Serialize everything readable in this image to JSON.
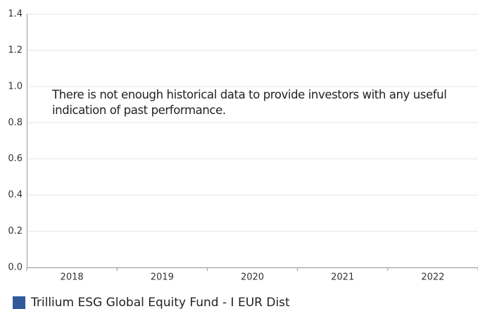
{
  "chart_data": {
    "type": "bar",
    "annotation": "There is not enough historical data to provide investors with any useful indication of past performance.",
    "categories": [
      "2018",
      "2019",
      "2020",
      "2021",
      "2022"
    ],
    "series": [
      {
        "name": "Trillium ESG Global Equity Fund - I EUR Dist",
        "color": "#2f5b9b",
        "values": [
          null,
          null,
          null,
          null,
          null
        ]
      }
    ],
    "ylim": [
      0,
      1.4
    ],
    "yticks": [
      {
        "value": 0,
        "label": "0.0"
      },
      {
        "value": 0.2,
        "label": "0.2"
      },
      {
        "value": 0.4,
        "label": "0.4"
      },
      {
        "value": 0.6,
        "label": "0.6"
      },
      {
        "value": 0.8,
        "label": "0.8"
      },
      {
        "value": 1,
        "label": "1.0"
      },
      {
        "value": 1.2,
        "label": "1.2"
      },
      {
        "value": 1.4,
        "label": "1.4"
      }
    ],
    "grid": true
  }
}
